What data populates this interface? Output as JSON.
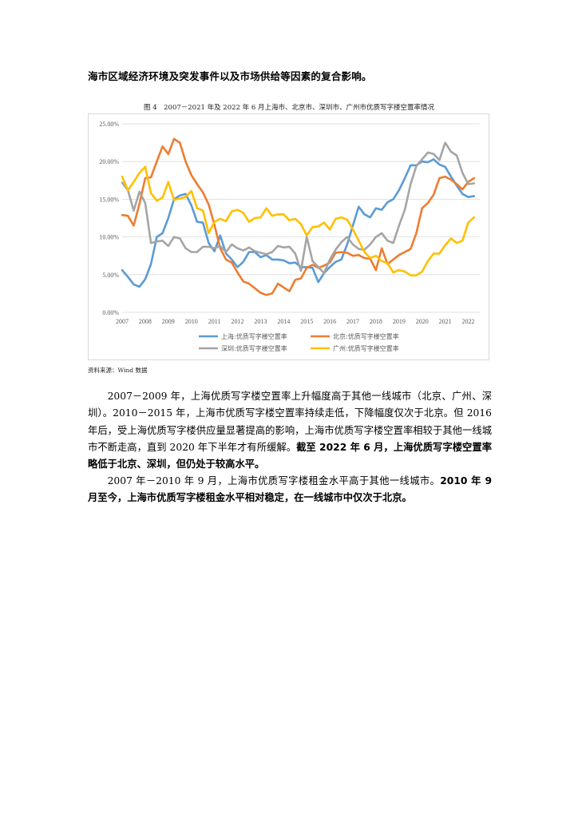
{
  "page": {
    "heading": "海市区域经济环境及突发事件以及市场供给等因素的复合影响。",
    "figure_caption": "图 4　2007－2021 年及 2022 年 6 月上海市、北京市、深圳市、广州市优质写字楼空置率情况",
    "source": "资料来源：Wind 数据",
    "paragraph1": {
      "normal": "2007－2009 年，上海优质写字楼空置率上升幅度高于其他一线城市（北京、广州、深圳）。2010－2015 年，上海市优质写字楼空置率持续走低，下降幅度仅次于北京。但 2016 年后，受上海优质写字楼供应量显著提高的影响，上海市优质写字楼空置率相较于其他一线城市不断走高，直到 2020 年下半年才有所缓解。",
      "bold": "截至 2022 年 6 月，上海优质写字楼空置率略低于北京、深圳，但仍处于较高水平。"
    },
    "paragraph2": {
      "normal": "2007 年－2010 年 9 月，上海市优质写字楼租金水平高于其他一线城市。",
      "bold": "2010 年 9 月至今，上海市优质写字楼租金水平相对稳定，在一线城市中仅次于北京。"
    }
  },
  "chart_data": {
    "type": "line",
    "title": "",
    "xlabel": "",
    "ylabel": "",
    "x_range": [
      2007,
      2022.5
    ],
    "ylim": [
      0,
      25
    ],
    "y_ticks": [
      "0.00%",
      "5.00%",
      "10.00%",
      "15.00%",
      "20.00%",
      "25.00%"
    ],
    "x_ticks": [
      "2007",
      "2008",
      "2009",
      "2010",
      "2011",
      "2012",
      "2013",
      "2014",
      "2015",
      "2016",
      "2017",
      "2018",
      "2019",
      "2020",
      "2021",
      "2022"
    ],
    "grid": true,
    "legend_position": "bottom",
    "series": [
      {
        "name": "上海:优质写字楼空置率",
        "color": "#5b9bd5",
        "x": [
          2007,
          2007.25,
          2007.5,
          2007.75,
          2008,
          2008.25,
          2008.5,
          2008.75,
          2009,
          2009.25,
          2009.5,
          2009.75,
          2010,
          2010.25,
          2010.5,
          2010.75,
          2011,
          2011.25,
          2011.5,
          2011.75,
          2012,
          2012.25,
          2012.5,
          2012.75,
          2013,
          2013.25,
          2013.5,
          2013.75,
          2014,
          2014.25,
          2014.5,
          2014.75,
          2015,
          2015.25,
          2015.5,
          2015.75,
          2016,
          2016.25,
          2016.5,
          2016.75,
          2017,
          2017.25,
          2017.5,
          2017.75,
          2018,
          2018.25,
          2018.5,
          2018.75,
          2019,
          2019.25,
          2019.5,
          2019.75,
          2020,
          2020.25,
          2020.5,
          2020.75,
          2021,
          2021.25,
          2021.5,
          2021.75,
          2022,
          2022.25
        ],
        "y": [
          5.6,
          4.7,
          3.7,
          3.4,
          4.4,
          6.4,
          10,
          10.5,
          12.5,
          15,
          15.5,
          15.7,
          14.2,
          12,
          11.9,
          9.2,
          8.1,
          10.2,
          7.8,
          7,
          6,
          6.7,
          8,
          8,
          7.3,
          7.6,
          7,
          7,
          6.9,
          6.5,
          6.6,
          6,
          6,
          5.9,
          4,
          5.2,
          6,
          6.7,
          7,
          9,
          11.5,
          14,
          13,
          12.6,
          13.8,
          13.6,
          14.6,
          15,
          16.2,
          17.8,
          19.5,
          19.5,
          20,
          19.9,
          20.3,
          19.6,
          19.3,
          18,
          16.8,
          15.7,
          15.3,
          15.4
        ]
      },
      {
        "name": "北京:优质写字楼空置率",
        "color": "#ed7d31",
        "x": [
          2007,
          2007.25,
          2007.5,
          2007.75,
          2008,
          2008.25,
          2008.5,
          2008.75,
          2009,
          2009.25,
          2009.5,
          2009.75,
          2010,
          2010.25,
          2010.5,
          2010.75,
          2011,
          2011.25,
          2011.5,
          2011.75,
          2012,
          2012.25,
          2012.5,
          2012.75,
          2013,
          2013.25,
          2013.5,
          2013.75,
          2014,
          2014.25,
          2014.5,
          2014.75,
          2015,
          2015.25,
          2015.5,
          2015.75,
          2016,
          2016.25,
          2016.5,
          2016.75,
          2017,
          2017.25,
          2017.5,
          2017.75,
          2018,
          2018.25,
          2018.5,
          2018.75,
          2019,
          2019.25,
          2019.5,
          2019.75,
          2020,
          2020.25,
          2020.5,
          2020.75,
          2021,
          2021.25,
          2021.5,
          2021.75,
          2022,
          2022.25
        ],
        "y": [
          12.9,
          12.8,
          11.5,
          14.4,
          17.8,
          17.9,
          20,
          22,
          21,
          23,
          22.5,
          20,
          18.2,
          17,
          15.9,
          14.3,
          11.6,
          8.5,
          7,
          6.6,
          5.3,
          4.1,
          3.8,
          3.2,
          2.6,
          2.3,
          2.5,
          3.8,
          3.3,
          2.8,
          4.3,
          4.5,
          5.9,
          6.3,
          5.9,
          6.2,
          6.6,
          7.9,
          8,
          7.9,
          7.5,
          7.6,
          7.2,
          7.1,
          5.6,
          8.5,
          6.4,
          7,
          7.6,
          8,
          8.4,
          10.5,
          13.8,
          14.5,
          15.6,
          17.8,
          18,
          17.6,
          17,
          16.3,
          17.3,
          17.8
        ]
      },
      {
        "name": "深圳:优质写字楼空置率",
        "color": "#a5a5a5",
        "x": [
          2007,
          2007.25,
          2007.5,
          2007.75,
          2008,
          2008.25,
          2008.5,
          2008.75,
          2009,
          2009.25,
          2009.5,
          2009.75,
          2010,
          2010.25,
          2010.5,
          2010.75,
          2011,
          2011.25,
          2011.5,
          2011.75,
          2012,
          2012.25,
          2012.5,
          2012.75,
          2013,
          2013.25,
          2013.5,
          2013.75,
          2014,
          2014.25,
          2014.5,
          2014.75,
          2015,
          2015.25,
          2015.5,
          2015.75,
          2016,
          2016.25,
          2016.5,
          2016.75,
          2017,
          2017.25,
          2017.5,
          2017.75,
          2018,
          2018.25,
          2018.5,
          2018.75,
          2019,
          2019.25,
          2019.5,
          2019.75,
          2020,
          2020.25,
          2020.5,
          2020.75,
          2021,
          2021.25,
          2021.5,
          2021.75,
          2022,
          2022.25
        ],
        "y": [
          17.2,
          16.2,
          13.5,
          16,
          14.5,
          9.2,
          9.4,
          9.5,
          8.8,
          10,
          9.8,
          8.5,
          8,
          8,
          8.7,
          8.7,
          8.5,
          8.8,
          8,
          9,
          8.5,
          8.2,
          8.6,
          8.1,
          7.9,
          7.7,
          8,
          8.8,
          8.6,
          8.7,
          7.8,
          5.5,
          10,
          6.8,
          6,
          5.2,
          7,
          8.3,
          9.3,
          10,
          9,
          8.4,
          8.3,
          9,
          10,
          10.5,
          9.5,
          9.2,
          11.5,
          13.6,
          17,
          19.4,
          20.3,
          21.2,
          21,
          20.2,
          22.5,
          21.3,
          20.8,
          18.5,
          17,
          17.1
        ]
      },
      {
        "name": "广州:优质写字楼空置率",
        "color": "#ffc000",
        "x": [
          2007,
          2007.25,
          2007.5,
          2007.75,
          2008,
          2008.25,
          2008.5,
          2008.75,
          2009,
          2009.25,
          2009.5,
          2009.75,
          2010,
          2010.25,
          2010.5,
          2010.75,
          2011,
          2011.25,
          2011.5,
          2011.75,
          2012,
          2012.25,
          2012.5,
          2012.75,
          2013,
          2013.25,
          2013.5,
          2013.75,
          2014,
          2014.25,
          2014.5,
          2014.75,
          2015,
          2015.25,
          2015.5,
          2015.75,
          2016,
          2016.25,
          2016.5,
          2016.75,
          2017,
          2017.25,
          2017.5,
          2017.75,
          2018,
          2018.25,
          2018.5,
          2018.75,
          2019,
          2019.25,
          2019.5,
          2019.75,
          2020,
          2020.25,
          2020.5,
          2020.75,
          2021,
          2021.25,
          2021.5,
          2021.75,
          2022,
          2022.25
        ],
        "y": [
          18,
          16.2,
          17.3,
          18.5,
          19.3,
          15.8,
          14.8,
          15.2,
          17.3,
          14.9,
          15.1,
          15.3,
          16.1,
          13.8,
          13.5,
          10.5,
          12,
          12.4,
          12.1,
          13.4,
          13.6,
          13.2,
          12,
          12.5,
          12.6,
          13.8,
          12.8,
          13,
          13,
          12.2,
          12.4,
          11.7,
          10.2,
          11.3,
          11.4,
          11.9,
          11,
          12.4,
          12.6,
          12.3,
          11,
          9.5,
          8,
          7.2,
          7.5,
          6.8,
          6.5,
          5.3,
          5.6,
          5.4,
          4.9,
          4.9,
          5.4,
          6.8,
          7.8,
          7.8,
          8.9,
          9.8,
          9.2,
          9.5,
          11.9,
          12.6
        ]
      }
    ]
  }
}
